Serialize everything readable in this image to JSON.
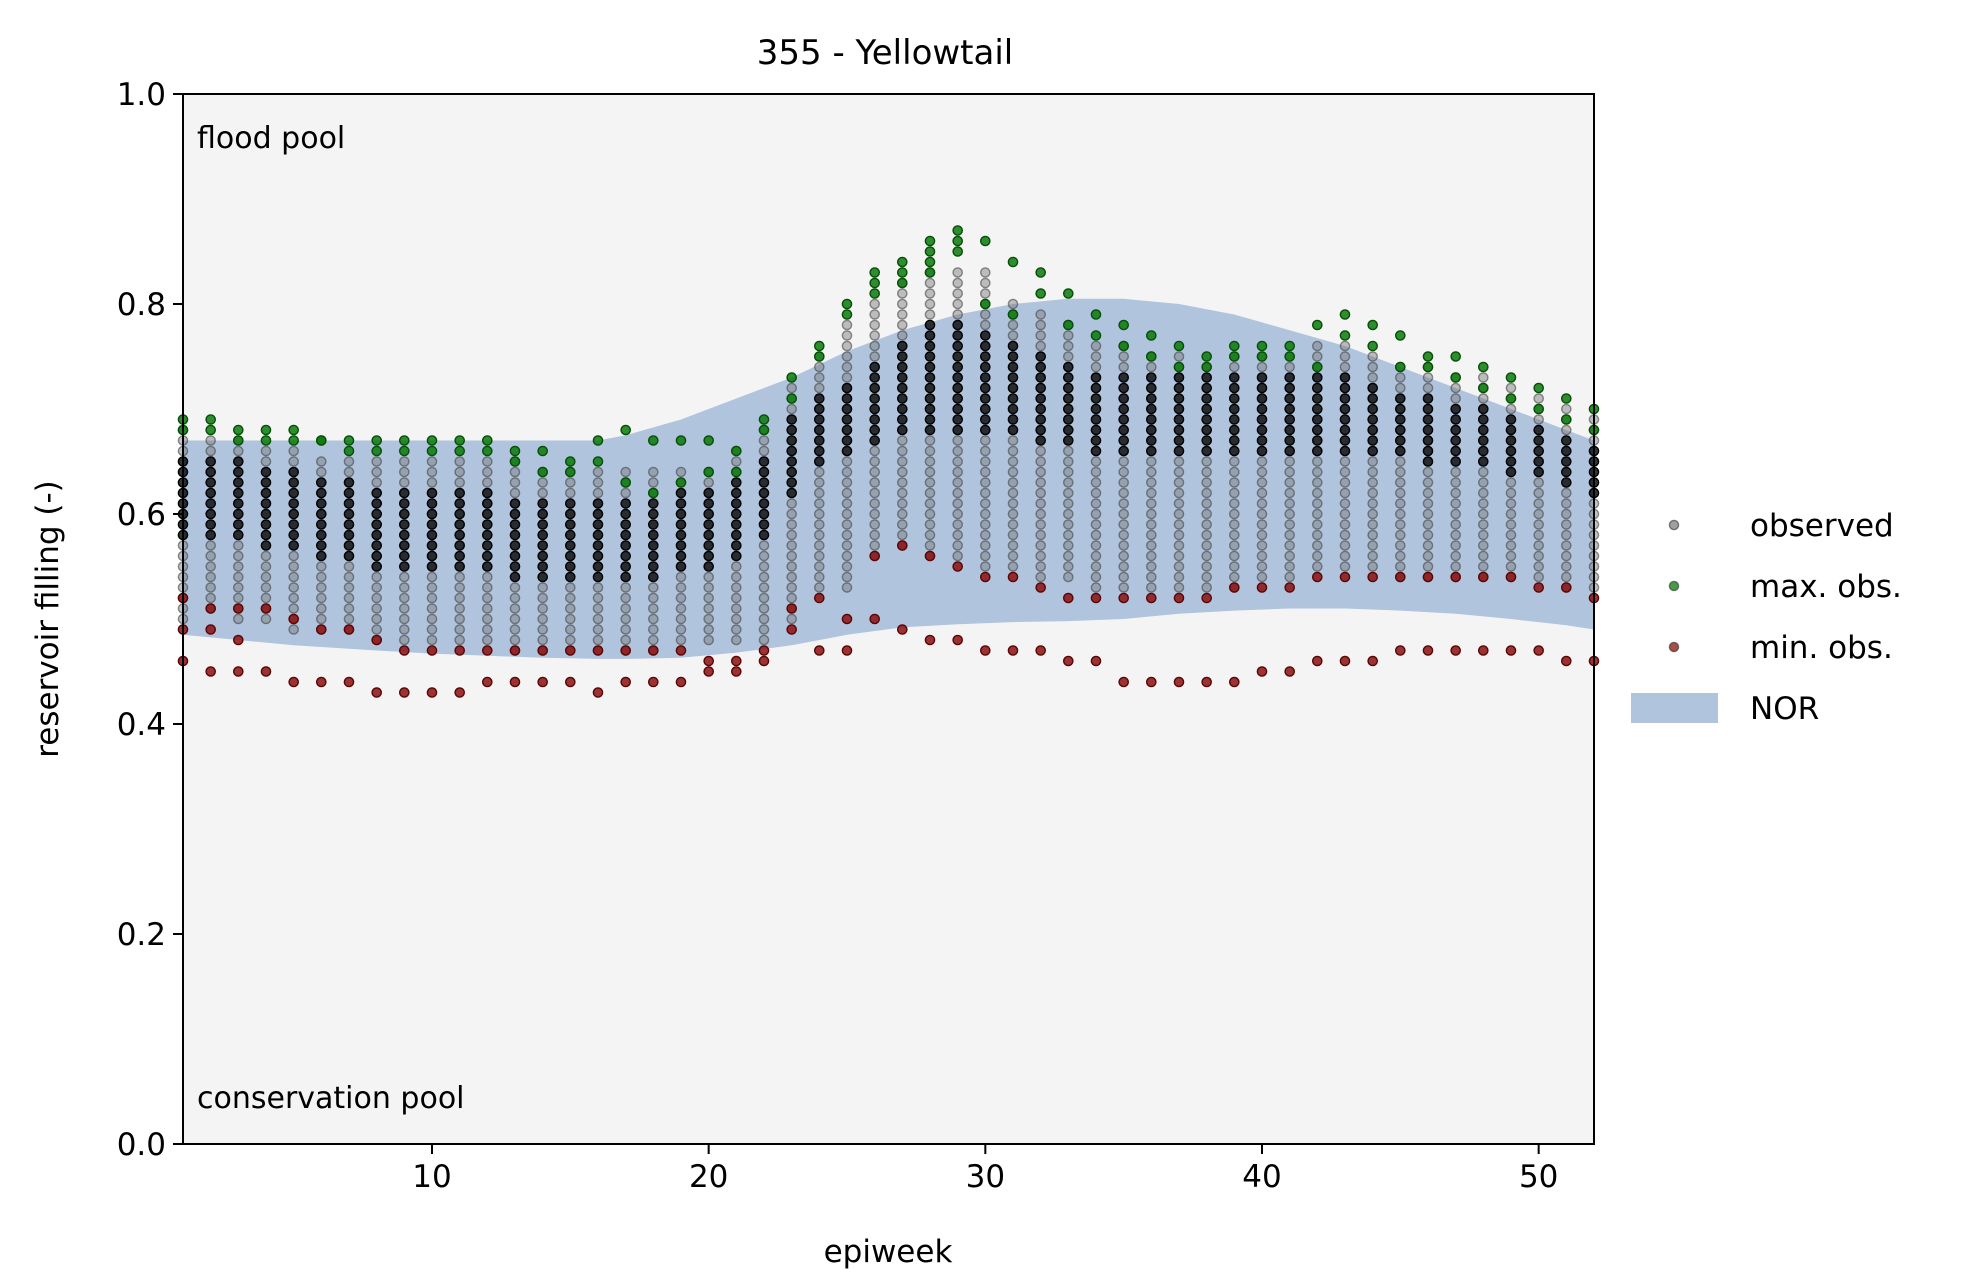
{
  "chart_data": {
    "type": "scatter",
    "title": "355 - Yellowtail",
    "xlabel": "epiweek",
    "ylabel": "reservoir filling (-)",
    "xlim": [
      1,
      52
    ],
    "ylim": [
      0.0,
      1.0
    ],
    "xticks": [
      10,
      20,
      30,
      40,
      50
    ],
    "yticks": [
      0.0,
      0.2,
      0.4,
      0.6,
      0.8,
      1.0
    ],
    "xtick_labels": [
      "10",
      "20",
      "30",
      "40",
      "50"
    ],
    "ytick_labels": [
      "0.0",
      "0.2",
      "0.4",
      "0.6",
      "0.8",
      "1.0"
    ],
    "annotations": {
      "top_left": "flood pool",
      "bottom_left": "conservation pool"
    },
    "grid": false,
    "legend": {
      "position": "right-outside",
      "entries": [
        {
          "label": "observed",
          "kind": "point",
          "color": "#808080"
        },
        {
          "label": "max. obs.",
          "kind": "point",
          "color": "#0a7a0a"
        },
        {
          "label": "min. obs.",
          "kind": "point",
          "color": "#8b1010"
        },
        {
          "label": "NOR",
          "kind": "area",
          "color": "#b0c4de"
        }
      ]
    },
    "colors": {
      "plot_background": "#f4f4f4",
      "nor": "#b0c4de",
      "observed": "#777777",
      "observed_dense": "#111111",
      "max": "#0a7a0a",
      "min": "#8b1010"
    },
    "nor": {
      "x": [
        1,
        3,
        5,
        8,
        10,
        12,
        14,
        16,
        17,
        19,
        21,
        23,
        25,
        27,
        29,
        31,
        33,
        35,
        37,
        39,
        41,
        43,
        45,
        47,
        49,
        51,
        52
      ],
      "upper": [
        0.67,
        0.67,
        0.67,
        0.67,
        0.67,
        0.67,
        0.67,
        0.67,
        0.675,
        0.69,
        0.71,
        0.73,
        0.755,
        0.775,
        0.79,
        0.8,
        0.805,
        0.805,
        0.8,
        0.79,
        0.775,
        0.76,
        0.74,
        0.72,
        0.7,
        0.68,
        0.67
      ],
      "lower": [
        0.485,
        0.48,
        0.475,
        0.47,
        0.467,
        0.465,
        0.463,
        0.462,
        0.462,
        0.463,
        0.468,
        0.475,
        0.485,
        0.492,
        0.495,
        0.497,
        0.498,
        0.5,
        0.505,
        0.508,
        0.51,
        0.51,
        0.508,
        0.505,
        0.5,
        0.494,
        0.49
      ]
    },
    "observed_range": {
      "x": [
        1,
        2,
        3,
        4,
        5,
        6,
        7,
        8,
        9,
        10,
        11,
        12,
        13,
        14,
        15,
        16,
        17,
        18,
        19,
        20,
        21,
        22,
        23,
        24,
        25,
        26,
        27,
        28,
        29,
        30,
        31,
        32,
        33,
        34,
        35,
        36,
        37,
        38,
        39,
        40,
        41,
        42,
        43,
        44,
        45,
        46,
        47,
        48,
        49,
        50,
        51,
        52
      ],
      "low": [
        0.5,
        0.51,
        0.5,
        0.5,
        0.49,
        0.49,
        0.49,
        0.48,
        0.48,
        0.48,
        0.48,
        0.48,
        0.47,
        0.47,
        0.47,
        0.47,
        0.47,
        0.47,
        0.48,
        0.48,
        0.48,
        0.48,
        0.5,
        0.53,
        0.53,
        0.56,
        0.57,
        0.56,
        0.56,
        0.55,
        0.55,
        0.54,
        0.54,
        0.53,
        0.53,
        0.53,
        0.53,
        0.53,
        0.53,
        0.54,
        0.54,
        0.55,
        0.55,
        0.55,
        0.54,
        0.54,
        0.54,
        0.54,
        0.54,
        0.54,
        0.53,
        0.53
      ],
      "high": [
        0.68,
        0.67,
        0.67,
        0.66,
        0.66,
        0.65,
        0.65,
        0.65,
        0.65,
        0.65,
        0.65,
        0.65,
        0.65,
        0.64,
        0.64,
        0.64,
        0.64,
        0.64,
        0.64,
        0.64,
        0.66,
        0.68,
        0.72,
        0.75,
        0.78,
        0.8,
        0.82,
        0.83,
        0.83,
        0.83,
        0.8,
        0.79,
        0.78,
        0.76,
        0.76,
        0.75,
        0.75,
        0.74,
        0.75,
        0.75,
        0.75,
        0.76,
        0.76,
        0.75,
        0.74,
        0.74,
        0.73,
        0.73,
        0.72,
        0.71,
        0.7,
        0.69
      ],
      "dense_low": [
        0.58,
        0.58,
        0.58,
        0.57,
        0.57,
        0.56,
        0.56,
        0.55,
        0.55,
        0.55,
        0.55,
        0.55,
        0.54,
        0.54,
        0.54,
        0.54,
        0.54,
        0.54,
        0.55,
        0.55,
        0.56,
        0.58,
        0.62,
        0.65,
        0.66,
        0.67,
        0.68,
        0.68,
        0.68,
        0.68,
        0.68,
        0.67,
        0.67,
        0.66,
        0.66,
        0.66,
        0.66,
        0.66,
        0.66,
        0.66,
        0.66,
        0.66,
        0.66,
        0.66,
        0.66,
        0.65,
        0.65,
        0.65,
        0.64,
        0.64,
        0.63,
        0.62
      ],
      "dense_high": [
        0.65,
        0.65,
        0.65,
        0.64,
        0.64,
        0.63,
        0.63,
        0.62,
        0.62,
        0.62,
        0.62,
        0.62,
        0.61,
        0.61,
        0.61,
        0.61,
        0.61,
        0.61,
        0.62,
        0.62,
        0.63,
        0.65,
        0.69,
        0.71,
        0.72,
        0.74,
        0.76,
        0.78,
        0.78,
        0.77,
        0.76,
        0.75,
        0.74,
        0.73,
        0.73,
        0.73,
        0.73,
        0.73,
        0.73,
        0.73,
        0.73,
        0.73,
        0.73,
        0.72,
        0.71,
        0.71,
        0.7,
        0.7,
        0.69,
        0.68,
        0.67,
        0.66
      ]
    },
    "max_obs": {
      "x": [
        1,
        1,
        2,
        2,
        3,
        3,
        4,
        4,
        5,
        5,
        6,
        6,
        7,
        7,
        8,
        8,
        9,
        9,
        10,
        10,
        11,
        11,
        12,
        12,
        13,
        13,
        14,
        14,
        15,
        15,
        16,
        16,
        17,
        17,
        18,
        18,
        19,
        19,
        20,
        20,
        21,
        21,
        22,
        22,
        23,
        23,
        24,
        24,
        25,
        25,
        26,
        26,
        26,
        27,
        27,
        27,
        28,
        28,
        28,
        28,
        29,
        29,
        29,
        30,
        30,
        31,
        31,
        32,
        32,
        33,
        33,
        34,
        34,
        35,
        35,
        36,
        36,
        37,
        37,
        38,
        38,
        39,
        39,
        40,
        40,
        41,
        41,
        42,
        42,
        43,
        43,
        44,
        44,
        45,
        45,
        46,
        46,
        47,
        47,
        48,
        48,
        49,
        49,
        50,
        50,
        51,
        51,
        52,
        52
      ],
      "y": [
        0.69,
        0.68,
        0.69,
        0.68,
        0.68,
        0.67,
        0.68,
        0.67,
        0.68,
        0.67,
        0.67,
        0.67,
        0.67,
        0.66,
        0.67,
        0.66,
        0.67,
        0.66,
        0.67,
        0.66,
        0.67,
        0.66,
        0.67,
        0.66,
        0.66,
        0.65,
        0.66,
        0.64,
        0.65,
        0.64,
        0.67,
        0.65,
        0.68,
        0.63,
        0.67,
        0.62,
        0.67,
        0.63,
        0.67,
        0.64,
        0.66,
        0.64,
        0.69,
        0.68,
        0.73,
        0.71,
        0.76,
        0.75,
        0.8,
        0.79,
        0.83,
        0.82,
        0.81,
        0.84,
        0.83,
        0.82,
        0.86,
        0.85,
        0.84,
        0.83,
        0.87,
        0.86,
        0.85,
        0.86,
        0.8,
        0.84,
        0.79,
        0.83,
        0.81,
        0.81,
        0.78,
        0.79,
        0.77,
        0.78,
        0.76,
        0.77,
        0.75,
        0.76,
        0.74,
        0.75,
        0.74,
        0.76,
        0.75,
        0.76,
        0.75,
        0.76,
        0.75,
        0.78,
        0.74,
        0.79,
        0.77,
        0.78,
        0.76,
        0.77,
        0.74,
        0.75,
        0.74,
        0.75,
        0.73,
        0.74,
        0.72,
        0.73,
        0.71,
        0.72,
        0.7,
        0.71,
        0.69,
        0.7,
        0.68
      ]
    },
    "min_obs": {
      "x": [
        1,
        1,
        1,
        2,
        2,
        2,
        3,
        3,
        3,
        4,
        4,
        5,
        5,
        6,
        6,
        7,
        7,
        8,
        8,
        9,
        9,
        10,
        10,
        11,
        11,
        12,
        12,
        13,
        13,
        14,
        14,
        15,
        15,
        16,
        16,
        17,
        17,
        18,
        18,
        19,
        19,
        20,
        20,
        21,
        21,
        22,
        22,
        23,
        23,
        24,
        24,
        25,
        25,
        26,
        26,
        27,
        27,
        28,
        28,
        29,
        29,
        30,
        30,
        31,
        31,
        32,
        32,
        33,
        33,
        34,
        34,
        35,
        35,
        36,
        36,
        37,
        37,
        38,
        38,
        39,
        39,
        40,
        40,
        41,
        41,
        42,
        42,
        43,
        43,
        44,
        44,
        45,
        45,
        46,
        46,
        47,
        47,
        48,
        48,
        49,
        49,
        50,
        50,
        51,
        51,
        52,
        52
      ],
      "y": [
        0.52,
        0.49,
        0.46,
        0.51,
        0.49,
        0.45,
        0.51,
        0.48,
        0.45,
        0.51,
        0.45,
        0.5,
        0.44,
        0.49,
        0.44,
        0.49,
        0.44,
        0.48,
        0.43,
        0.47,
        0.43,
        0.47,
        0.43,
        0.47,
        0.43,
        0.47,
        0.44,
        0.47,
        0.44,
        0.47,
        0.44,
        0.47,
        0.44,
        0.47,
        0.43,
        0.47,
        0.44,
        0.47,
        0.44,
        0.47,
        0.44,
        0.46,
        0.45,
        0.46,
        0.45,
        0.47,
        0.46,
        0.51,
        0.49,
        0.52,
        0.47,
        0.5,
        0.47,
        0.56,
        0.5,
        0.57,
        0.49,
        0.56,
        0.48,
        0.55,
        0.48,
        0.54,
        0.47,
        0.54,
        0.47,
        0.53,
        0.47,
        0.52,
        0.46,
        0.52,
        0.46,
        0.52,
        0.44,
        0.52,
        0.44,
        0.52,
        0.44,
        0.52,
        0.44,
        0.53,
        0.44,
        0.53,
        0.45,
        0.53,
        0.45,
        0.54,
        0.46,
        0.54,
        0.46,
        0.54,
        0.46,
        0.54,
        0.47,
        0.54,
        0.47,
        0.54,
        0.47,
        0.54,
        0.47,
        0.54,
        0.47,
        0.53,
        0.47,
        0.53,
        0.46,
        0.52,
        0.46
      ]
    }
  }
}
